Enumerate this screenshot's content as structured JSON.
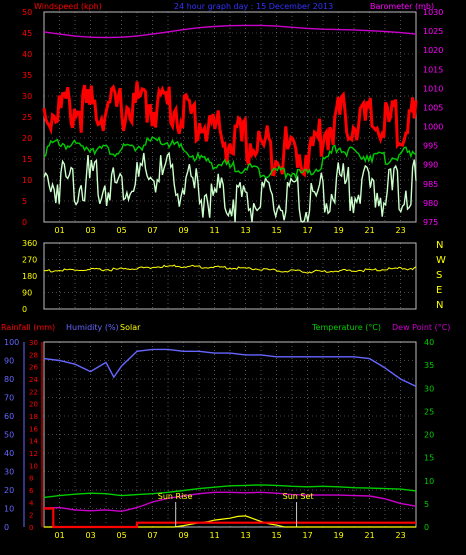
{
  "page": {
    "title": "24 hour graph day : 15 December 2013",
    "background": "#000000"
  },
  "chart_data": [
    {
      "id": "wind-baro",
      "type": "line",
      "title": "24 hour graph day : 15 December 2013",
      "left_label": "Windspeed (kph)",
      "right_label": "Barometer (mb)",
      "x_ticks": [
        "01",
        "03",
        "05",
        "07",
        "09",
        "11",
        "13",
        "15",
        "17",
        "19",
        "21",
        "23"
      ],
      "x_range": [
        0,
        24
      ],
      "y_left": {
        "range": [
          0,
          50
        ],
        "ticks": [
          "0",
          "5",
          "10",
          "15",
          "20",
          "25",
          "30",
          "35",
          "40",
          "45",
          "50"
        ]
      },
      "y_right": {
        "range": [
          975,
          1030
        ],
        "ticks": [
          "975",
          "980",
          "985",
          "990",
          "995",
          "1000",
          "1005",
          "1010",
          "1015",
          "1020",
          "1025",
          "1030"
        ]
      },
      "grid": true,
      "colors": {
        "left_label": "#ff0000",
        "right_label": "#ff00ff",
        "title": "#3333ff",
        "axis_text": "#ffff00",
        "grid": "#909090"
      },
      "series": [
        {
          "key": "gust",
          "color": "#ff0000",
          "axis": "left",
          "x": [
            0,
            1,
            2,
            3,
            4,
            5,
            6,
            7,
            8,
            9,
            10,
            11,
            12,
            13,
            14,
            15,
            16,
            17,
            18,
            19,
            20,
            21,
            22,
            23,
            24
          ],
          "y": [
            26,
            27,
            27,
            27,
            27,
            27,
            28,
            28,
            28,
            26,
            24,
            22,
            19,
            19,
            18,
            17,
            17,
            16,
            21,
            25,
            24,
            24,
            23,
            24,
            24
          ]
        },
        {
          "key": "average",
          "color": "#00cc00",
          "axis": "left",
          "x": [
            0,
            1,
            2,
            3,
            4,
            5,
            6,
            7,
            8,
            9,
            10,
            11,
            12,
            13,
            14,
            15,
            16,
            17,
            18,
            19,
            20,
            21,
            22,
            23,
            24
          ],
          "y": [
            17,
            19,
            18,
            18,
            17,
            17,
            18,
            19,
            19,
            17,
            15,
            14,
            13,
            13,
            12,
            12,
            12,
            11,
            14,
            18,
            16,
            16,
            15,
            16,
            17
          ]
        },
        {
          "key": "speed",
          "color": "#ccffcc",
          "axis": "left",
          "x": [
            0,
            1,
            2,
            3,
            4,
            5,
            6,
            7,
            8,
            9,
            10,
            11,
            12,
            13,
            14,
            15,
            16,
            17,
            18,
            19,
            20,
            21,
            22,
            23,
            24
          ],
          "y": [
            9,
            10,
            10,
            10,
            9,
            9,
            10,
            11,
            11,
            9,
            7,
            6,
            6,
            5,
            5,
            4,
            5,
            4,
            6,
            9,
            8,
            8,
            7,
            8,
            9
          ]
        },
        {
          "key": "barometer",
          "color": "#cc00cc",
          "axis": "right",
          "x": [
            0,
            1,
            2,
            3,
            4,
            5,
            6,
            7,
            8,
            9,
            10,
            11,
            12,
            13,
            14,
            15,
            16,
            17,
            18,
            19,
            20,
            21,
            22,
            23,
            24
          ],
          "y": [
            1024.8,
            1024.2,
            1023.7,
            1023.4,
            1023.3,
            1023.4,
            1023.7,
            1024.2,
            1024.8,
            1025.4,
            1025.9,
            1026.2,
            1026.4,
            1026.5,
            1026.5,
            1026.3,
            1026.0,
            1025.7,
            1025.5,
            1025.4,
            1025.3,
            1025.1,
            1024.9,
            1024.6,
            1024.2
          ]
        }
      ]
    },
    {
      "id": "direction",
      "type": "line",
      "x_ticks": [
        "01",
        "03",
        "05",
        "07",
        "09",
        "11",
        "13",
        "15",
        "17",
        "19",
        "21",
        "23"
      ],
      "x_range": [
        0,
        24
      ],
      "y_left": {
        "range": [
          0,
          360
        ],
        "ticks": [
          "0",
          "90",
          "180",
          "270",
          "360"
        ]
      },
      "right_labels": [
        "N",
        "W",
        "S",
        "E",
        "N"
      ],
      "grid": true,
      "colors": {
        "axis_text": "#ffff00",
        "series": "#ffff00"
      },
      "series": [
        {
          "key": "wind-direction",
          "color": "#ffff00",
          "x": [
            0,
            1,
            2,
            3,
            4,
            5,
            6,
            7,
            8,
            9,
            10,
            11,
            12,
            13,
            14,
            15,
            16,
            17,
            18,
            19,
            20,
            21,
            22,
            23,
            24
          ],
          "y": [
            208,
            210,
            212,
            213,
            215,
            217,
            222,
            228,
            232,
            233,
            230,
            228,
            225,
            222,
            218,
            210,
            206,
            203,
            205,
            208,
            210,
            213,
            216,
            220,
            222
          ]
        }
      ]
    },
    {
      "id": "rain-hum-temp",
      "type": "line",
      "left_label_1": "Rainfall (mm)",
      "left_label_2": "Humidity (%)",
      "left_label_3": "Solar",
      "right_label_1": "Temperature (°C)",
      "right_label_2": "Dew Point (°C)",
      "annotations": [
        "Sun Rise",
        "Sun Set"
      ],
      "x_ticks": [
        "01",
        "03",
        "05",
        "07",
        "09",
        "11",
        "13",
        "15",
        "17",
        "19",
        "21",
        "23"
      ],
      "x_range": [
        0,
        24
      ],
      "y_humidity": {
        "range": [
          0,
          100
        ],
        "ticks": [
          "0",
          "10",
          "20",
          "30",
          "40",
          "50",
          "60",
          "70",
          "80",
          "90",
          "100"
        ]
      },
      "y_rain": {
        "range": [
          0,
          30
        ],
        "ticks": [
          "0",
          "2",
          "4",
          "6",
          "8",
          "10",
          "12",
          "14",
          "16",
          "18",
          "20",
          "22",
          "24",
          "26",
          "28",
          "30"
        ]
      },
      "y_temp": {
        "range": [
          0,
          40
        ],
        "ticks": [
          "0",
          "5",
          "10",
          "15",
          "20",
          "25",
          "30",
          "35",
          "40"
        ]
      },
      "grid": true,
      "colors": {
        "rain": "#ff0000",
        "humidity": "#6666ff",
        "solar": "#ffff00",
        "temperature": "#00cc00",
        "dewpoint": "#cc00cc",
        "axis_text": "#ffff00"
      },
      "series": [
        {
          "key": "humidity",
          "color": "#6666ff",
          "axis": "humidity",
          "x": [
            0,
            1,
            2,
            3,
            4,
            4.5,
            5,
            6,
            7,
            8,
            9,
            10,
            11,
            12,
            13,
            14,
            15,
            16,
            17,
            18,
            19,
            20,
            21,
            22,
            23,
            24
          ],
          "y": [
            91,
            90,
            88,
            84,
            89,
            81,
            87,
            95,
            96,
            96,
            95,
            95,
            94,
            94,
            93,
            93,
            92,
            92,
            92,
            92,
            92,
            92,
            91,
            86,
            80,
            76
          ]
        },
        {
          "key": "temperature",
          "color": "#00cc00",
          "axis": "temp",
          "x": [
            0,
            1,
            2,
            3,
            4,
            5,
            6,
            7,
            8,
            9,
            10,
            11,
            12,
            13,
            14,
            15,
            16,
            17,
            18,
            19,
            20,
            21,
            22,
            23,
            24
          ],
          "y": [
            6.4,
            6.8,
            7.1,
            7.3,
            7.2,
            6.8,
            7.0,
            7.2,
            7.5,
            7.9,
            8.3,
            8.6,
            8.9,
            9.0,
            9.1,
            9.0,
            8.8,
            8.7,
            8.8,
            8.7,
            8.5,
            8.4,
            8.3,
            8.2,
            7.8
          ]
        },
        {
          "key": "dewpoint",
          "color": "#cc00cc",
          "axis": "temp",
          "x": [
            0,
            1,
            2,
            3,
            4,
            5,
            6,
            7,
            8,
            9,
            10,
            11,
            12,
            13,
            14,
            15,
            16,
            17,
            18,
            19,
            20,
            21,
            22,
            23,
            24
          ],
          "y": [
            4.1,
            4.2,
            3.7,
            3.5,
            3.7,
            3.4,
            4.2,
            5.4,
            6.2,
            6.7,
            7.2,
            7.5,
            7.5,
            7.4,
            7.5,
            7.3,
            7.0,
            6.9,
            6.9,
            6.9,
            6.8,
            6.7,
            6.1,
            5.1,
            4.5
          ]
        },
        {
          "key": "solar",
          "color": "#ffff00",
          "axis": "temp",
          "x": [
            0,
            8.4,
            9,
            9.5,
            10,
            10.5,
            11,
            11.5,
            12,
            12.5,
            13,
            13.5,
            14,
            14.5,
            15,
            15.5,
            24
          ],
          "y": [
            0,
            0,
            0.3,
            0.6,
            0.9,
            1.1,
            1.5,
            1.7,
            1.9,
            2.3,
            2.4,
            1.8,
            1.2,
            0.7,
            0.4,
            0,
            0
          ]
        },
        {
          "key": "rainfall",
          "color": "#ff0000",
          "axis": "rain",
          "x": [
            0,
            0.6,
            0.6,
            6,
            6,
            24
          ],
          "y": [
            3,
            3,
            0,
            0,
            0.7,
            0.7
          ]
        }
      ]
    }
  ]
}
